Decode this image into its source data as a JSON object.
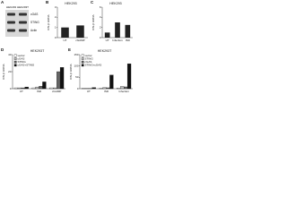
{
  "chart_data": [
    {
      "type": "blot",
      "panel": "A",
      "columns": [
        "HEK293",
        "HEK293T"
      ],
      "rows": [
        "cGAS",
        "STING",
        "Actin"
      ]
    },
    {
      "type": "bar",
      "panel": "B",
      "title": "HEK293",
      "ylabel": "IFN-β mRNA",
      "categories": [
        "UT",
        "cGAMP"
      ],
      "values": [
        1,
        1.2
      ],
      "color": "#222222",
      "ylim": [
        0,
        3
      ],
      "yticks": [
        0,
        1,
        2,
        3
      ]
    },
    {
      "type": "bar",
      "panel": "C",
      "title": "HEK293",
      "ylabel": "IFN-β mRNA",
      "categories": [
        "UT",
        "Infection",
        "ISD"
      ],
      "values": [
        1,
        3,
        2.5
      ],
      "color": "#222222",
      "ylim": [
        0,
        6
      ],
      "yticks": [
        0,
        2,
        4,
        6
      ]
    },
    {
      "type": "bar",
      "panel": "D",
      "title": "HEK293T",
      "ylabel": "IFN-β mRNA",
      "categories": [
        "UT",
        "ISD",
        "cGAMP"
      ],
      "legend": "upper left",
      "series": [
        {
          "name": "vector",
          "color": "#ffffff",
          "values": [
            1,
            1,
            1
          ]
        },
        {
          "name": "cGAS",
          "color": "#bbbbbb",
          "values": [
            1,
            2,
            1
          ]
        },
        {
          "name": "STING",
          "color": "#666666",
          "values": [
            1,
            3,
            20
          ]
        },
        {
          "name": "cGAS+STING",
          "color": "#111111",
          "values": [
            2,
            8,
            25
          ]
        }
      ],
      "ylim": [
        0,
        40
      ],
      "yticks": [
        0,
        20,
        40
      ]
    },
    {
      "type": "bar",
      "panel": "E",
      "title": "HEK293T",
      "ylabel": "IFN-β mRNA",
      "categories": [
        "UT",
        "ISD",
        "Infection"
      ],
      "legend": "upper left",
      "series": [
        {
          "name": "vector",
          "color": "#ffffff",
          "values": [
            1,
            2,
            3
          ]
        },
        {
          "name": "STING",
          "color": "#bbbbbb",
          "values": [
            1,
            5,
            10
          ]
        },
        {
          "name": "cGAS",
          "color": "#666666",
          "values": [
            1,
            4,
            8
          ]
        },
        {
          "name": "STING+cGAS",
          "color": "#111111",
          "values": [
            5,
            60,
            110
          ]
        }
      ],
      "ylim": [
        0,
        150
      ],
      "yticks": [
        0,
        50,
        100,
        150
      ]
    }
  ]
}
